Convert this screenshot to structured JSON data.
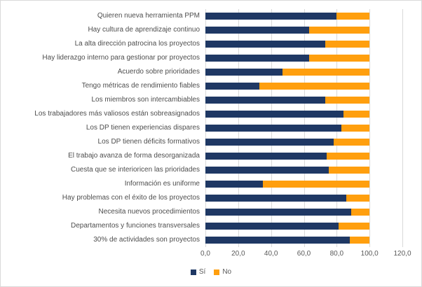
{
  "chart_data": {
    "type": "bar",
    "orientation": "horizontal",
    "stacked": true,
    "title": "",
    "xlabel": "",
    "ylabel": "",
    "xlim": [
      0,
      120
    ],
    "grid": true,
    "legend_position": "bottom-center",
    "x_ticks": [
      "0,0",
      "20,0",
      "40,0",
      "60,0",
      "80,0",
      "100,0",
      "120,0"
    ],
    "x_tick_values": [
      0,
      20,
      40,
      60,
      80,
      100,
      120
    ],
    "categories": [
      "Quieren nueva herramienta PPM",
      "Hay cultura de aprendizaje continuo",
      "La alta dirección patrocina los proyectos",
      "Hay liderazgo interno para gestionar por proyectos",
      "Acuerdo sobre prioridades",
      "Tengo métricas de rendimiento fiables",
      "Los miembros son intercambiables",
      "Los trabajadores más valiosos están sobreasignados",
      "Los DP tienen experiencias dispares",
      "Los DP tienen déficits formativos",
      "El trabajo avanza de forma desorganizada",
      "Cuesta que se interioricen las prioridades",
      "Información es uniforme",
      "Hay problemas con el éxito de los proyectos",
      "Necesita nuevos procedimientos",
      "Departamentos y funciones transversales",
      "30% de actividades son proyectos"
    ],
    "series": [
      {
        "name": "Sí",
        "color": "#1F3864",
        "values": [
          80,
          63,
          73,
          63,
          47,
          33,
          73,
          84,
          83,
          78,
          74,
          75,
          35,
          86,
          89,
          81,
          88
        ]
      },
      {
        "name": "No",
        "color": "#FF9F0E",
        "values": [
          20,
          37,
          27,
          37,
          53,
          67,
          27,
          16,
          17,
          22,
          26,
          25,
          65,
          14,
          11,
          19,
          12
        ]
      }
    ]
  },
  "colors": {
    "grid": "#d9d9d9",
    "frame_border": "#d9d9d9",
    "tick_text": "#595959",
    "category_text": "#4d4d4d",
    "background": "#ffffff"
  }
}
